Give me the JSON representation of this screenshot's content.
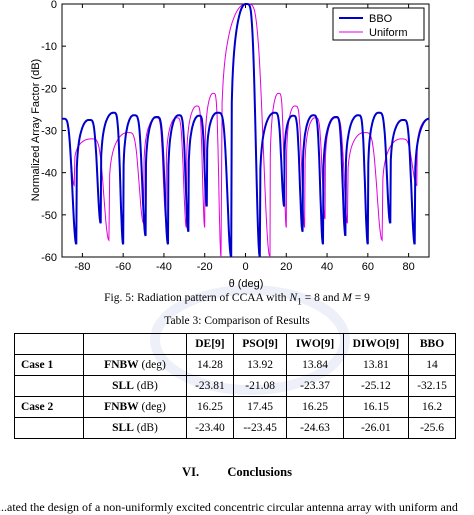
{
  "figure": {
    "caption_prefix": "Fig. 5: Radiation pattern of CCAA with ",
    "caption_n": "N",
    "caption_n_sub": "1",
    "caption_mid": " = 8 and ",
    "caption_m": "M",
    "caption_suffix": " = 9"
  },
  "chart_data": {
    "type": "line",
    "xlabel": "θ (deg)",
    "ylabel": "Normalized Array Factor (dB)",
    "xlim": [
      -90,
      90
    ],
    "ylim": [
      -60,
      0
    ],
    "xticks": [
      -80,
      -60,
      -40,
      -20,
      0,
      20,
      40,
      60,
      80
    ],
    "yticks": [
      0,
      -10,
      -20,
      -30,
      -40,
      -50,
      -60
    ],
    "grid": false,
    "legend_position": "top-right",
    "series": [
      {
        "name": "BBO",
        "color": "#0000cc",
        "peaks_deg": [
          -90,
          -77,
          -65,
          -55,
          -44,
          -33,
          -23,
          -14,
          0,
          14,
          23,
          33,
          44,
          55,
          65,
          77,
          90
        ],
        "peak_db": [
          -27.2,
          -27.5,
          -25.8,
          -26.4,
          -26.8,
          -26.4,
          -26.5,
          -25.8,
          0,
          -25.8,
          -26.5,
          -26.4,
          -26.8,
          -26.4,
          -25.8,
          -27.5,
          -27.2
        ],
        "nulls_deg": [
          -83,
          -71,
          -60,
          -49,
          -38,
          -28,
          -19,
          -7,
          7,
          19,
          28,
          38,
          49,
          60,
          71,
          83
        ],
        "null_db": [
          -57,
          -52,
          -57,
          -55,
          -57,
          -54,
          -48,
          -60,
          -60,
          -48,
          -54,
          -57,
          -55,
          -57,
          -52,
          -57
        ]
      },
      {
        "name": "Uniform",
        "color": "#e000e0",
        "peaks_deg": [
          -90,
          -76,
          -58,
          -44,
          -34,
          -24,
          -16,
          0,
          16,
          24,
          34,
          44,
          58,
          76,
          90
        ],
        "peak_db": [
          -27.2,
          -32,
          -30.5,
          -27,
          -27,
          -24.2,
          -21.2,
          0,
          -21.2,
          -24.2,
          -27,
          -27,
          -30.5,
          -32,
          -27.2
        ],
        "nulls_deg": [
          -84,
          -67,
          -50,
          -39,
          -29,
          -20,
          -12,
          12,
          20,
          29,
          39,
          50,
          67,
          84
        ],
        "null_db": [
          -43,
          -56,
          -52,
          -51,
          -53,
          -53,
          -60,
          -60,
          -53,
          -53,
          -51,
          -52,
          -56,
          -43
        ]
      }
    ]
  },
  "table": {
    "title": "Table 3: Comparison of Results",
    "headers": [
      "DE[9]",
      "PSO[9]",
      "IWO[9]",
      "DIWO[9]",
      "BBO"
    ],
    "rows": [
      {
        "case": "Case 1",
        "metric": "FNBW",
        "unit": " (deg)",
        "values": [
          "14.28",
          "13.92",
          "13.84",
          "13.81",
          "14"
        ]
      },
      {
        "case": "",
        "metric": "SLL",
        "unit": " (dB)",
        "values": [
          "-23.81",
          "-21.08",
          "-23.37",
          "-25.12",
          "-32.15"
        ]
      },
      {
        "case": "Case 2",
        "metric": "FNBW",
        "unit": " (deg)",
        "values": [
          "16.25",
          "17.45",
          "16.25",
          "16.15",
          "16.2"
        ]
      },
      {
        "case": "",
        "metric": "SLL",
        "unit": " (dB)",
        "values": [
          "-23.40",
          "--23.45",
          "-24.63",
          "-26.01",
          "-25.6"
        ]
      }
    ]
  },
  "section": {
    "number": "VI.",
    "title": "Conclusions"
  },
  "body_text": "...ated the design of a non-uniformly excited concentric circular antenna array with uniform and"
}
